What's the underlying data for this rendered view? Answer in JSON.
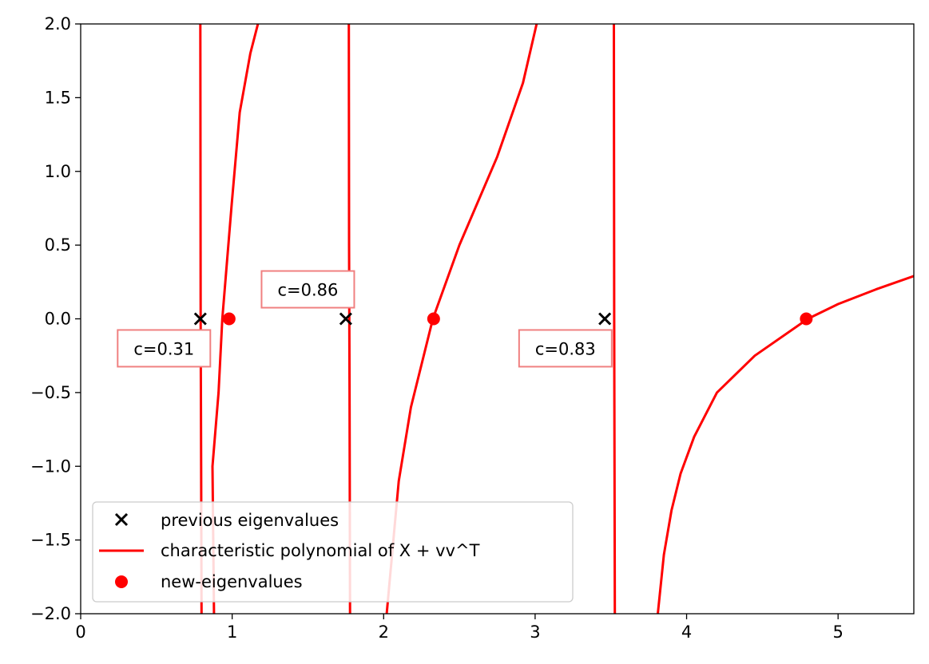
{
  "chart_data": {
    "type": "line",
    "title": "",
    "xlabel": "",
    "ylabel": "",
    "xlim": [
      0,
      5.5
    ],
    "ylim": [
      -2,
      2
    ],
    "x_ticks": [
      0,
      1,
      2,
      3,
      4,
      5
    ],
    "x_tick_labels": [
      "0",
      "1",
      "2",
      "3",
      "4",
      "5"
    ],
    "y_ticks": [
      2.0,
      1.5,
      1.0,
      0.5,
      0.0,
      -0.5,
      -1.0,
      -1.5,
      -2.0
    ],
    "y_tick_labels": [
      "2.0",
      "1.5",
      "1.0",
      "0.5",
      "0.0",
      "−0.5",
      "−1.0",
      "−1.5",
      "−2.0"
    ],
    "grid": false,
    "legend_position": "lower-left",
    "series": [
      {
        "name": "previous eigenvalues",
        "type": "scatter",
        "marker": "x",
        "color": "#000000",
        "points": [
          [
            0.79,
            0
          ],
          [
            1.75,
            0
          ],
          [
            3.46,
            0
          ]
        ]
      },
      {
        "name": "characteristic polynomial of X + vv^T",
        "type": "line",
        "color": "#ff0000",
        "branches": [
          [
            [
              0.79,
              2.0
            ],
            [
              0.792,
              0.0
            ],
            [
              0.795,
              -1.0
            ],
            [
              0.798,
              -2.0
            ]
          ],
          [
            [
              0.88,
              -2.0
            ],
            [
              0.87,
              -1.0
            ],
            [
              0.91,
              -0.5
            ],
            [
              0.935,
              0.0
            ],
            [
              0.997,
              0.78
            ],
            [
              1.05,
              1.4
            ],
            [
              1.12,
              1.8
            ],
            [
              1.17,
              2.0
            ]
          ],
          [
            [
              1.77,
              2.0
            ],
            [
              1.772,
              0.5
            ],
            [
              1.775,
              -0.5
            ],
            [
              1.778,
              -2.0
            ]
          ],
          [
            [
              2.02,
              -2.0
            ],
            [
              2.1,
              -1.1
            ],
            [
              2.18,
              -0.6
            ],
            [
              2.325,
              0.0
            ],
            [
              2.5,
              0.5
            ],
            [
              2.75,
              1.1
            ],
            [
              2.92,
              1.6
            ],
            [
              3.01,
              2.0
            ]
          ],
          [
            [
              3.52,
              2.0
            ],
            [
              3.522,
              0.0
            ],
            [
              3.526,
              -2.0
            ]
          ],
          [
            [
              3.81,
              -2.0
            ],
            [
              3.85,
              -1.6
            ],
            [
              3.9,
              -1.3
            ],
            [
              3.96,
              -1.05
            ],
            [
              4.05,
              -0.8
            ],
            [
              4.2,
              -0.5
            ],
            [
              4.45,
              -0.25
            ],
            [
              4.8,
              0.0
            ],
            [
              5.0,
              0.1
            ],
            [
              5.25,
              0.2
            ],
            [
              5.5,
              0.29
            ]
          ]
        ]
      },
      {
        "name": "new-eigenvalues",
        "type": "scatter",
        "marker": "o",
        "color": "#ff0000",
        "points": [
          [
            0.98,
            0
          ],
          [
            2.33,
            0
          ],
          [
            4.79,
            0
          ]
        ]
      }
    ],
    "annotations": [
      {
        "text": "c=0.31",
        "x": 0.55,
        "y": -0.2
      },
      {
        "text": "c=0.86",
        "x": 1.5,
        "y": 0.2
      },
      {
        "text": "c=0.83",
        "x": 3.2,
        "y": -0.2
      }
    ]
  }
}
